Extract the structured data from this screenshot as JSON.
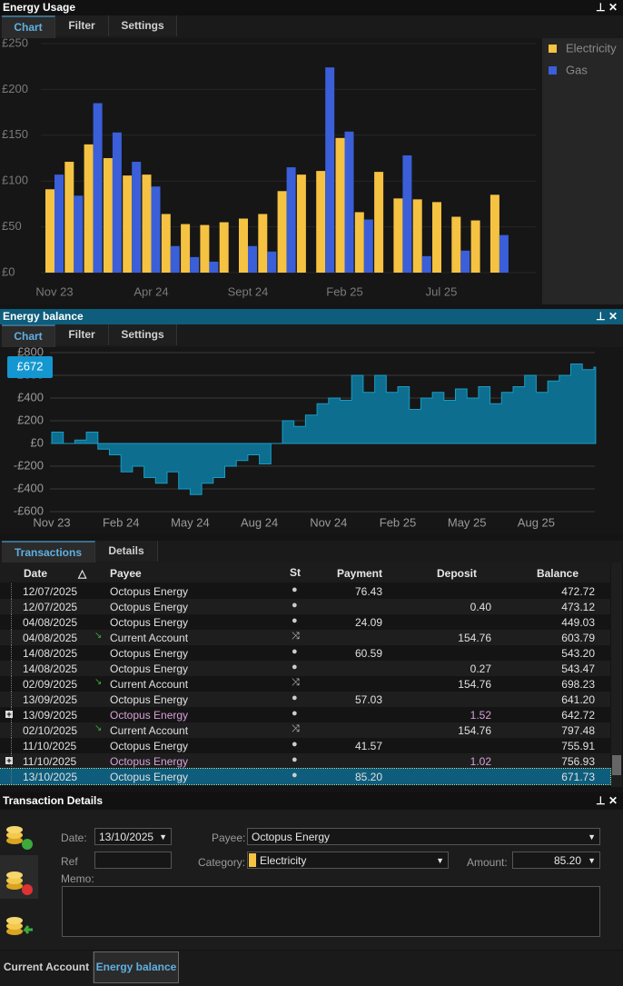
{
  "chart_data": [
    {
      "type": "bar",
      "panel": "Energy Usage",
      "categories": [
        "Nov 23",
        null,
        null,
        null,
        null,
        "Apr 24",
        null,
        null,
        null,
        null,
        "Sept 24",
        null,
        null,
        null,
        null,
        "Feb 25",
        null,
        null,
        null,
        null,
        "Jul 25",
        null,
        null,
        null
      ],
      "series": [
        {
          "name": "Electricity",
          "color": "#f5c242",
          "values": [
            91,
            121,
            140,
            125,
            106,
            107,
            64,
            53,
            52,
            55,
            59,
            64,
            89,
            107,
            111,
            147,
            66,
            110,
            81,
            80,
            77,
            61,
            57,
            85
          ]
        },
        {
          "name": "Gas",
          "color": "#3a5fd9",
          "values": [
            107,
            84,
            185,
            153,
            121,
            94,
            29,
            17,
            12,
            0,
            29,
            23,
            115,
            0,
            224,
            154,
            58,
            0,
            128,
            18,
            0,
            24,
            0,
            41
          ]
        }
      ],
      "ylim": [
        0,
        250
      ],
      "yticks": [
        {
          "value": 0,
          "label": "£0"
        },
        {
          "value": 50,
          "label": "£50"
        },
        {
          "value": 100,
          "label": "£100"
        },
        {
          "value": 150,
          "label": "£150"
        },
        {
          "value": 200,
          "label": "£200"
        },
        {
          "value": 250,
          "label": "£250"
        }
      ],
      "grid": true,
      "legend": "right"
    },
    {
      "type": "area",
      "panel": "Energy balance",
      "color": "#0d6e8f",
      "annotation": "£672",
      "categories": [
        "Nov 23",
        null,
        null,
        null,
        null,
        null,
        "Feb 24",
        null,
        null,
        null,
        null,
        null,
        "May 24",
        null,
        null,
        null,
        null,
        null,
        "Aug 24",
        null,
        null,
        null,
        null,
        null,
        "Nov 24",
        null,
        null,
        null,
        null,
        null,
        "Feb 25",
        null,
        null,
        null,
        null,
        null,
        "May 25",
        null,
        null,
        null,
        null,
        null,
        "Aug 25",
        null,
        null,
        null,
        null,
        null
      ],
      "values": [
        100,
        0,
        30,
        100,
        -50,
        -100,
        -250,
        -200,
        -300,
        -350,
        -250,
        -400,
        -450,
        -350,
        -300,
        -200,
        -150,
        -100,
        -180,
        0,
        200,
        150,
        250,
        350,
        400,
        380,
        600,
        450,
        600,
        450,
        500,
        300,
        400,
        450,
        380,
        480,
        400,
        500,
        350,
        450,
        500,
        600,
        450,
        550,
        600,
        700,
        650,
        672
      ],
      "ylim": [
        -600,
        800
      ],
      "yticks": [
        {
          "value": -600,
          "label": "-£600"
        },
        {
          "value": -400,
          "label": "-£400"
        },
        {
          "value": -200,
          "label": "-£200"
        },
        {
          "value": 0,
          "label": "£0"
        },
        {
          "value": 200,
          "label": "£200"
        },
        {
          "value": 400,
          "label": "£400"
        },
        {
          "value": 600,
          "label": "£600"
        },
        {
          "value": 800,
          "label": "£800"
        }
      ],
      "grid": true
    }
  ],
  "tabs": [
    "Chart",
    "Filter",
    "Settings"
  ],
  "transactions": {
    "tabs": [
      "Transactions",
      "Details"
    ],
    "columns": [
      "Date",
      "Payee",
      "St",
      "Payment",
      "Deposit",
      "Balance"
    ],
    "rows": [
      {
        "date": "12/07/2025",
        "payee": "Octopus Energy",
        "payment": "76.43",
        "deposit": null,
        "balance": "472.72",
        "transfer": false,
        "split": false
      },
      {
        "date": "12/07/2025",
        "payee": "Octopus Energy",
        "payment": null,
        "deposit": "0.40",
        "balance": "473.12",
        "transfer": false,
        "split": false
      },
      {
        "date": "04/08/2025",
        "payee": "Octopus Energy",
        "payment": "24.09",
        "deposit": null,
        "balance": "449.03",
        "transfer": false,
        "split": false
      },
      {
        "date": "04/08/2025",
        "payee": "Current Account",
        "payment": null,
        "deposit": "154.76",
        "balance": "603.79",
        "transfer": true,
        "split": false
      },
      {
        "date": "14/08/2025",
        "payee": "Octopus Energy",
        "payment": "60.59",
        "deposit": null,
        "balance": "543.20",
        "transfer": false,
        "split": false
      },
      {
        "date": "14/08/2025",
        "payee": "Octopus Energy",
        "payment": null,
        "deposit": "0.27",
        "balance": "543.47",
        "transfer": false,
        "split": false
      },
      {
        "date": "02/09/2025",
        "payee": "Current Account",
        "payment": null,
        "deposit": "154.76",
        "balance": "698.23",
        "transfer": true,
        "split": false
      },
      {
        "date": "13/09/2025",
        "payee": "Octopus Energy",
        "payment": "57.03",
        "deposit": null,
        "balance": "641.20",
        "transfer": false,
        "split": false
      },
      {
        "date": "13/09/2025",
        "payee": "Octopus Energy",
        "payment": null,
        "deposit": "1.52",
        "balance": "642.72",
        "transfer": false,
        "split": true
      },
      {
        "date": "02/10/2025",
        "payee": "Current Account",
        "payment": null,
        "deposit": "154.76",
        "balance": "797.48",
        "transfer": true,
        "split": false
      },
      {
        "date": "11/10/2025",
        "payee": "Octopus Energy",
        "payment": "41.57",
        "deposit": null,
        "balance": "755.91",
        "transfer": false,
        "split": false
      },
      {
        "date": "11/10/2025",
        "payee": "Octopus Energy",
        "payment": null,
        "deposit": "1.02",
        "balance": "756.93",
        "transfer": false,
        "split": true
      },
      {
        "date": "13/10/2025",
        "payee": "Octopus Energy",
        "payment": "85.20",
        "deposit": null,
        "balance": "671.73",
        "transfer": false,
        "split": false
      }
    ],
    "selected": 12
  },
  "details": {
    "title": "Transaction Details",
    "date_label": "Date:",
    "date": "13/10/2025",
    "payee_label": "Payee:",
    "payee": "Octopus Energy",
    "ref_label": "Ref",
    "category_label": "Category:",
    "category": "Electricity",
    "category_color": "#f5c242",
    "amount_label": "Amount:",
    "amount": "85.20",
    "memo_label": "Memo:"
  },
  "bottom_tabs": [
    "Current Account",
    "Energy balance"
  ]
}
